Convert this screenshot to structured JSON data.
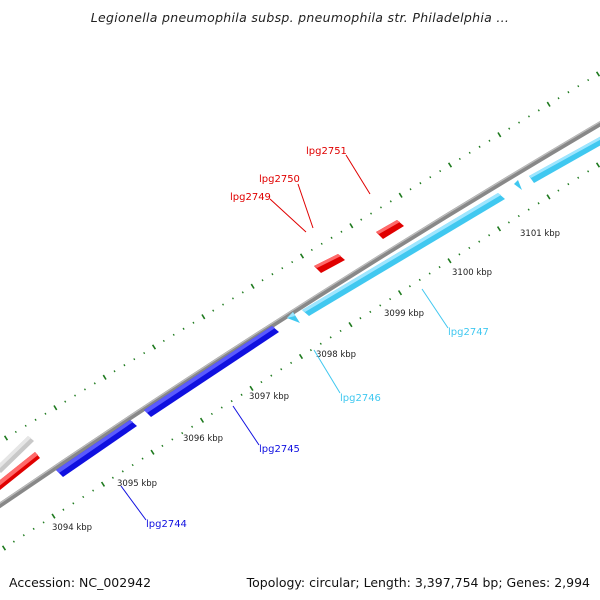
{
  "title": "Legionella pneumophila subsp. pneumophila str. Philadelphia ...",
  "footer": {
    "accession": "Accession: NC_002942",
    "summary": "Topology: circular; Length: 3,397,754 bp; Genes: 2,994"
  },
  "colors": {
    "background": "#ffffff",
    "backbone": "#888888",
    "forward_ticks": "#1e7a1e",
    "red_gene": "#e00000",
    "blue_gene": "#1010e0",
    "cyan_gene": "#40c8f0",
    "grey_gene": "#c8c8c8"
  },
  "kbp_ticks": [
    "3094 kbp",
    "3095 kbp",
    "3096 kbp",
    "3097 kbp",
    "3098 kbp",
    "3099 kbp",
    "3100 kbp",
    "3101 kbp"
  ],
  "genes": [
    {
      "id": "lpg2744",
      "label": "lpg2744",
      "color": "#1010e0",
      "strand": "reverse"
    },
    {
      "id": "lpg2745",
      "label": "lpg2745",
      "color": "#1010e0",
      "strand": "reverse"
    },
    {
      "id": "lpg2746",
      "label": "lpg2746",
      "color": "#40c8f0",
      "strand": "reverse"
    },
    {
      "id": "lpg2747",
      "label": "lpg2747",
      "color": "#40c8f0",
      "strand": "reverse"
    },
    {
      "id": "lpg2749",
      "label": "lpg2749",
      "color": "#e00000",
      "strand": "forward"
    },
    {
      "id": "lpg2750",
      "label": "lpg2750",
      "color": "#e00000",
      "strand": "forward"
    },
    {
      "id": "lpg2751",
      "label": "lpg2751",
      "color": "#e00000",
      "strand": "forward"
    }
  ]
}
